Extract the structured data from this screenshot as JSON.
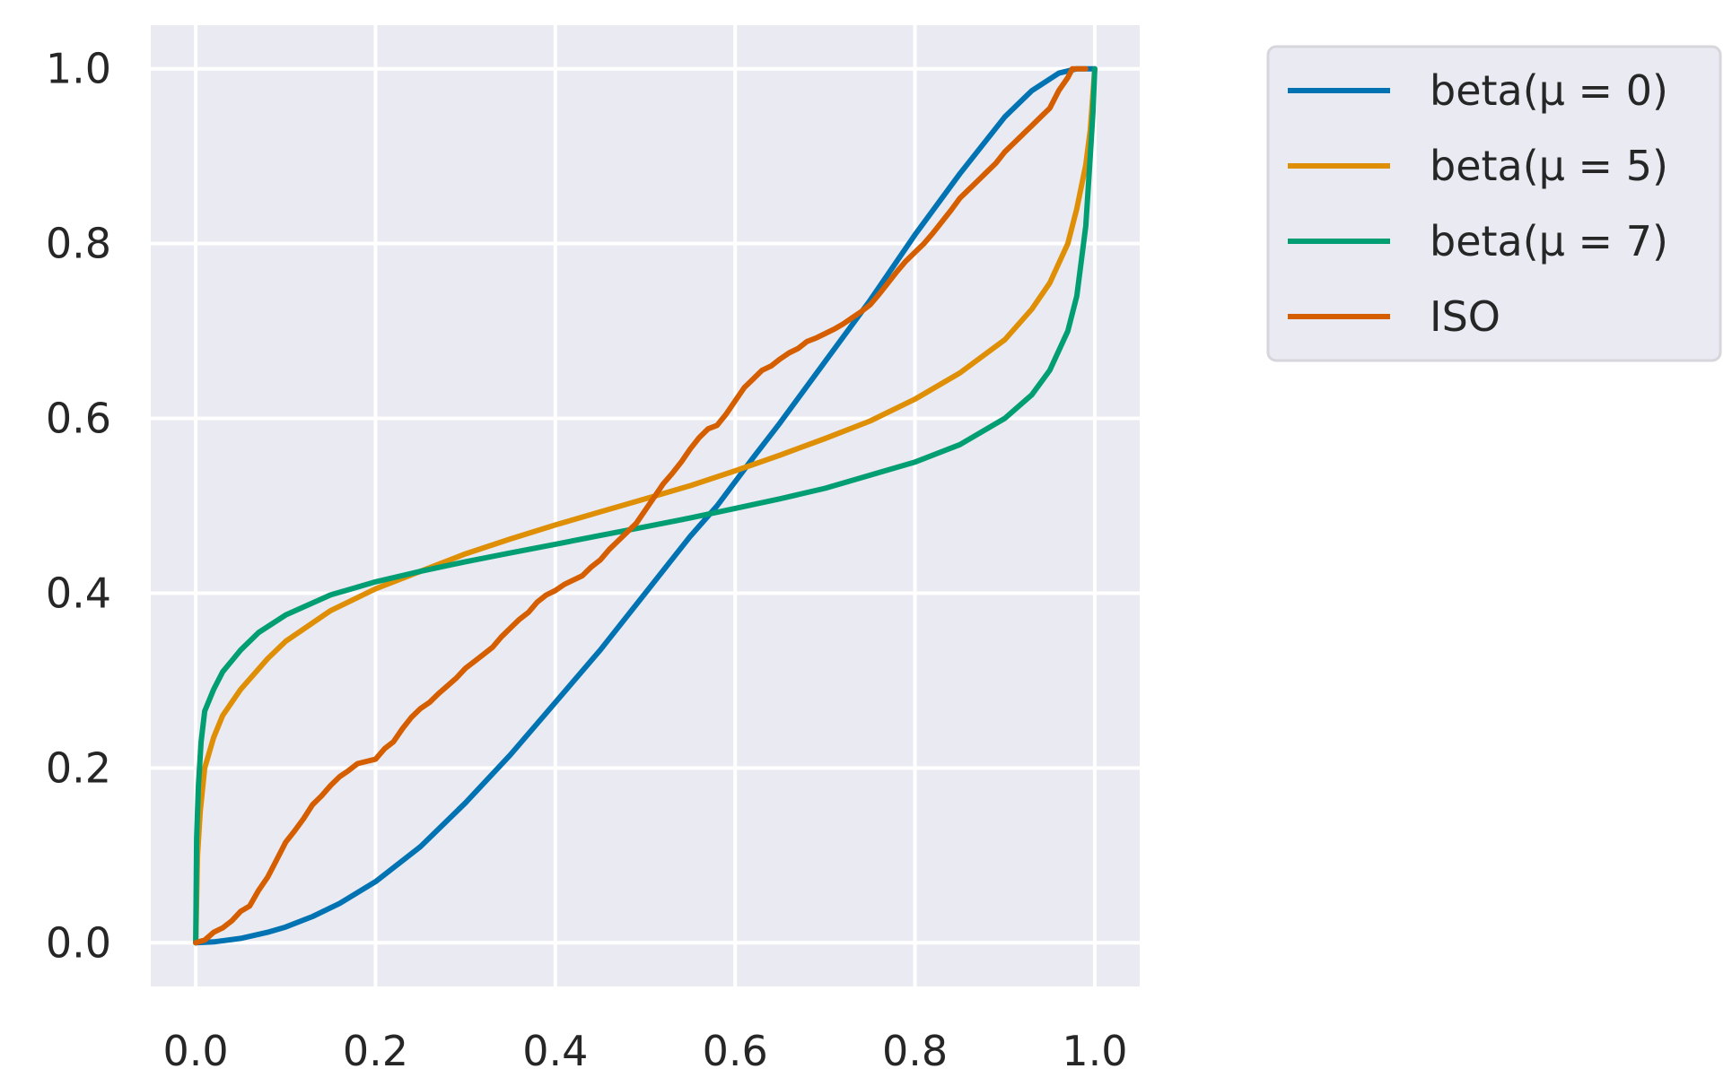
{
  "chart_data": {
    "type": "line",
    "title": "",
    "xlabel": "",
    "ylabel": "",
    "xlim": [
      -0.05,
      1.05
    ],
    "ylim": [
      -0.05,
      1.05
    ],
    "xticks": [
      0.0,
      0.2,
      0.4,
      0.6,
      0.8,
      1.0
    ],
    "yticks": [
      0.0,
      0.2,
      0.4,
      0.6,
      0.8,
      1.0
    ],
    "xtick_labels": [
      "0.0",
      "0.2",
      "0.4",
      "0.6",
      "0.8",
      "1.0"
    ],
    "ytick_labels": [
      "0.0",
      "0.2",
      "0.4",
      "0.6",
      "0.8",
      "1.0"
    ],
    "grid": true,
    "background": "#EAEAF2",
    "legend_position": "outside upper right",
    "series": [
      {
        "name": "beta(μ = 0)",
        "color": "#0173B2",
        "points": [
          [
            0,
            0
          ],
          [
            0.02,
            0.001
          ],
          [
            0.05,
            0.005
          ],
          [
            0.08,
            0.012
          ],
          [
            0.1,
            0.018
          ],
          [
            0.13,
            0.03
          ],
          [
            0.16,
            0.045
          ],
          [
            0.2,
            0.07
          ],
          [
            0.25,
            0.11
          ],
          [
            0.3,
            0.16
          ],
          [
            0.35,
            0.215
          ],
          [
            0.4,
            0.275
          ],
          [
            0.45,
            0.335
          ],
          [
            0.5,
            0.4
          ],
          [
            0.55,
            0.465
          ],
          [
            0.58,
            0.5
          ],
          [
            0.62,
            0.555
          ],
          [
            0.65,
            0.595
          ],
          [
            0.7,
            0.665
          ],
          [
            0.75,
            0.735
          ],
          [
            0.8,
            0.81
          ],
          [
            0.85,
            0.88
          ],
          [
            0.9,
            0.945
          ],
          [
            0.93,
            0.975
          ],
          [
            0.96,
            0.995
          ],
          [
            0.98,
            1.0
          ],
          [
            1.0,
            1.0
          ]
        ]
      },
      {
        "name": "beta(μ = 5)",
        "color": "#DE8F05",
        "points": [
          [
            0,
            0
          ],
          [
            0.002,
            0.1
          ],
          [
            0.005,
            0.15
          ],
          [
            0.01,
            0.2
          ],
          [
            0.02,
            0.235
          ],
          [
            0.03,
            0.26
          ],
          [
            0.05,
            0.29
          ],
          [
            0.08,
            0.325
          ],
          [
            0.1,
            0.345
          ],
          [
            0.15,
            0.38
          ],
          [
            0.2,
            0.405
          ],
          [
            0.25,
            0.425
          ],
          [
            0.3,
            0.445
          ],
          [
            0.35,
            0.462
          ],
          [
            0.4,
            0.478
          ],
          [
            0.45,
            0.493
          ],
          [
            0.5,
            0.508
          ],
          [
            0.55,
            0.523
          ],
          [
            0.6,
            0.54
          ],
          [
            0.65,
            0.558
          ],
          [
            0.7,
            0.577
          ],
          [
            0.75,
            0.597
          ],
          [
            0.8,
            0.622
          ],
          [
            0.85,
            0.652
          ],
          [
            0.9,
            0.69
          ],
          [
            0.93,
            0.725
          ],
          [
            0.95,
            0.755
          ],
          [
            0.97,
            0.8
          ],
          [
            0.98,
            0.84
          ],
          [
            0.99,
            0.89
          ],
          [
            0.995,
            0.93
          ],
          [
            1.0,
            1.0
          ]
        ]
      },
      {
        "name": "beta(μ = 7)",
        "color": "#029E73",
        "points": [
          [
            0,
            0
          ],
          [
            0.001,
            0.12
          ],
          [
            0.003,
            0.18
          ],
          [
            0.006,
            0.23
          ],
          [
            0.01,
            0.265
          ],
          [
            0.02,
            0.29
          ],
          [
            0.03,
            0.31
          ],
          [
            0.05,
            0.335
          ],
          [
            0.07,
            0.355
          ],
          [
            0.1,
            0.375
          ],
          [
            0.15,
            0.398
          ],
          [
            0.2,
            0.413
          ],
          [
            0.25,
            0.425
          ],
          [
            0.3,
            0.436
          ],
          [
            0.35,
            0.446
          ],
          [
            0.4,
            0.456
          ],
          [
            0.45,
            0.466
          ],
          [
            0.5,
            0.476
          ],
          [
            0.55,
            0.486
          ],
          [
            0.6,
            0.497
          ],
          [
            0.65,
            0.508
          ],
          [
            0.7,
            0.52
          ],
          [
            0.75,
            0.535
          ],
          [
            0.8,
            0.55
          ],
          [
            0.85,
            0.57
          ],
          [
            0.9,
            0.6
          ],
          [
            0.93,
            0.627
          ],
          [
            0.95,
            0.655
          ],
          [
            0.97,
            0.7
          ],
          [
            0.98,
            0.74
          ],
          [
            0.99,
            0.82
          ],
          [
            0.995,
            0.9
          ],
          [
            0.998,
            0.95
          ],
          [
            1.0,
            1.0
          ]
        ]
      },
      {
        "name": "ISO",
        "color": "#D55E00",
        "points": [
          [
            0,
            0
          ],
          [
            0.01,
            0.003
          ],
          [
            0.02,
            0.012
          ],
          [
            0.03,
            0.017
          ],
          [
            0.04,
            0.025
          ],
          [
            0.05,
            0.036
          ],
          [
            0.06,
            0.042
          ],
          [
            0.07,
            0.06
          ],
          [
            0.08,
            0.075
          ],
          [
            0.09,
            0.095
          ],
          [
            0.1,
            0.115
          ],
          [
            0.11,
            0.128
          ],
          [
            0.12,
            0.142
          ],
          [
            0.13,
            0.158
          ],
          [
            0.14,
            0.168
          ],
          [
            0.15,
            0.18
          ],
          [
            0.16,
            0.19
          ],
          [
            0.17,
            0.197
          ],
          [
            0.18,
            0.205
          ],
          [
            0.2,
            0.21
          ],
          [
            0.21,
            0.222
          ],
          [
            0.22,
            0.23
          ],
          [
            0.23,
            0.245
          ],
          [
            0.24,
            0.258
          ],
          [
            0.25,
            0.268
          ],
          [
            0.26,
            0.275
          ],
          [
            0.27,
            0.285
          ],
          [
            0.28,
            0.294
          ],
          [
            0.29,
            0.303
          ],
          [
            0.3,
            0.314
          ],
          [
            0.31,
            0.322
          ],
          [
            0.32,
            0.33
          ],
          [
            0.33,
            0.338
          ],
          [
            0.34,
            0.35
          ],
          [
            0.35,
            0.36
          ],
          [
            0.36,
            0.37
          ],
          [
            0.37,
            0.378
          ],
          [
            0.38,
            0.39
          ],
          [
            0.39,
            0.398
          ],
          [
            0.4,
            0.403
          ],
          [
            0.41,
            0.41
          ],
          [
            0.42,
            0.415
          ],
          [
            0.43,
            0.42
          ],
          [
            0.44,
            0.43
          ],
          [
            0.45,
            0.438
          ],
          [
            0.46,
            0.45
          ],
          [
            0.47,
            0.46
          ],
          [
            0.48,
            0.47
          ],
          [
            0.49,
            0.48
          ],
          [
            0.5,
            0.495
          ],
          [
            0.51,
            0.51
          ],
          [
            0.52,
            0.525
          ],
          [
            0.53,
            0.537
          ],
          [
            0.54,
            0.55
          ],
          [
            0.55,
            0.565
          ],
          [
            0.56,
            0.578
          ],
          [
            0.57,
            0.588
          ],
          [
            0.58,
            0.592
          ],
          [
            0.59,
            0.605
          ],
          [
            0.6,
            0.62
          ],
          [
            0.61,
            0.635
          ],
          [
            0.62,
            0.645
          ],
          [
            0.63,
            0.655
          ],
          [
            0.64,
            0.66
          ],
          [
            0.65,
            0.668
          ],
          [
            0.66,
            0.675
          ],
          [
            0.67,
            0.68
          ],
          [
            0.68,
            0.688
          ],
          [
            0.69,
            0.692
          ],
          [
            0.7,
            0.697
          ],
          [
            0.71,
            0.702
          ],
          [
            0.72,
            0.708
          ],
          [
            0.73,
            0.715
          ],
          [
            0.74,
            0.722
          ],
          [
            0.75,
            0.73
          ],
          [
            0.76,
            0.742
          ],
          [
            0.77,
            0.755
          ],
          [
            0.78,
            0.768
          ],
          [
            0.79,
            0.78
          ],
          [
            0.8,
            0.79
          ],
          [
            0.81,
            0.8
          ],
          [
            0.82,
            0.812
          ],
          [
            0.83,
            0.825
          ],
          [
            0.84,
            0.838
          ],
          [
            0.85,
            0.852
          ],
          [
            0.86,
            0.862
          ],
          [
            0.87,
            0.872
          ],
          [
            0.88,
            0.882
          ],
          [
            0.89,
            0.892
          ],
          [
            0.9,
            0.905
          ],
          [
            0.91,
            0.915
          ],
          [
            0.92,
            0.925
          ],
          [
            0.93,
            0.935
          ],
          [
            0.94,
            0.945
          ],
          [
            0.95,
            0.955
          ],
          [
            0.96,
            0.975
          ],
          [
            0.97,
            0.99
          ],
          [
            0.975,
            1.0
          ],
          [
            0.99,
            1.0
          ]
        ]
      }
    ]
  }
}
